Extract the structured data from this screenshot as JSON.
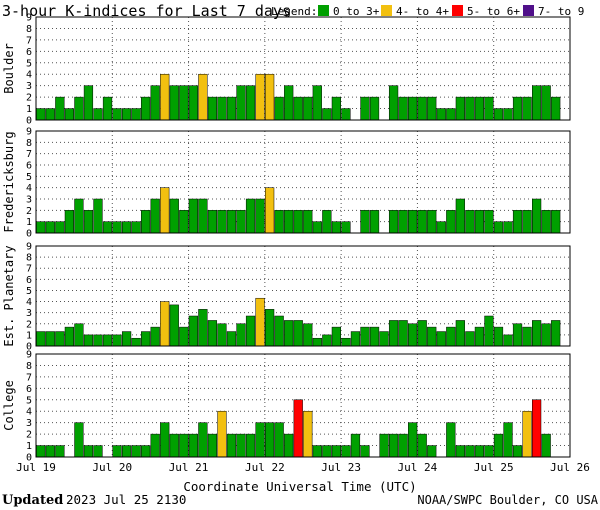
{
  "title": "3-hour K-indices for Last 7 days",
  "legend": {
    "label": "Legend:",
    "items": [
      {
        "label": "0 to 3+",
        "color": "#00a000"
      },
      {
        "label": "4- to 4+",
        "color": "#f2c010"
      },
      {
        "label": "5- to 6+",
        "color": "#ff0000"
      },
      {
        "label": "7- to 9",
        "color": "#50108a"
      }
    ]
  },
  "footer": {
    "updated_label": "Updated",
    "updated_value": "2023 Jul 25 2130",
    "credit": "NOAA/SWPC Boulder, CO USA"
  },
  "chart_data": {
    "type": "bar",
    "xlabel": "Coordinate Universal Time (UTC)",
    "x_ticks": [
      "Jul 19",
      "Jul 20",
      "Jul 21",
      "Jul 22",
      "Jul 23",
      "Jul 24",
      "Jul 25",
      "Jul 26"
    ],
    "ylim": [
      0,
      9
    ],
    "y_ticks": [
      "0",
      "1",
      "2",
      "3",
      "4",
      "5",
      "6",
      "7",
      "8",
      "9"
    ],
    "bins_per_day": 8,
    "grid": "dotted",
    "panels": [
      {
        "name": "Boulder",
        "values": [
          1,
          1,
          2,
          1,
          2,
          3,
          1,
          2,
          1,
          1,
          1,
          2,
          3,
          4,
          3,
          3,
          3,
          4,
          2,
          2,
          2,
          3,
          3,
          4,
          4,
          2,
          3,
          2,
          2,
          3,
          1,
          2,
          1,
          0,
          2,
          2,
          0,
          3,
          2,
          2,
          2,
          2,
          1,
          1,
          2,
          2,
          2,
          2,
          1,
          1,
          2,
          2,
          3,
          3,
          2,
          0
        ]
      },
      {
        "name": "Fredericksburg",
        "values": [
          1,
          1,
          1,
          2,
          3,
          2,
          3,
          1,
          1,
          1,
          1,
          2,
          3,
          4,
          3,
          2,
          3,
          3,
          2,
          2,
          2,
          2,
          3,
          3,
          4,
          2,
          2,
          2,
          2,
          1,
          2,
          1,
          1,
          0,
          2,
          2,
          0,
          2,
          2,
          2,
          2,
          2,
          1,
          2,
          3,
          2,
          2,
          2,
          1,
          1,
          2,
          2,
          3,
          2,
          2,
          0
        ]
      },
      {
        "name": "Est. Planetary",
        "values": [
          1.3,
          1.3,
          1.3,
          1.7,
          2,
          1,
          1,
          1,
          1,
          1.3,
          0.7,
          1.3,
          1.7,
          4,
          3.7,
          1.7,
          2.7,
          3.3,
          2.3,
          2,
          1.3,
          2,
          2.7,
          4.3,
          3.3,
          2.7,
          2.3,
          2.3,
          2,
          0.7,
          1,
          1.7,
          0.7,
          1.3,
          1.7,
          1.7,
          1.3,
          2.3,
          2.3,
          2,
          2.3,
          1.7,
          1.3,
          1.7,
          2.3,
          1.3,
          1.7,
          2.7,
          1.7,
          1,
          2,
          1.7,
          2.3,
          2,
          2.3,
          0
        ]
      },
      {
        "name": "College",
        "values": [
          1,
          1,
          1,
          0,
          3,
          1,
          1,
          0,
          1,
          1,
          1,
          1,
          2,
          3,
          2,
          2,
          2,
          3,
          2,
          4,
          2,
          2,
          2,
          3,
          3,
          3,
          2,
          5,
          4,
          1,
          1,
          1,
          1,
          2,
          1,
          0,
          2,
          2,
          2,
          3,
          2,
          1,
          0,
          3,
          1,
          1,
          1,
          1,
          2,
          3,
          1,
          4,
          5,
          2,
          0,
          0
        ]
      }
    ]
  }
}
